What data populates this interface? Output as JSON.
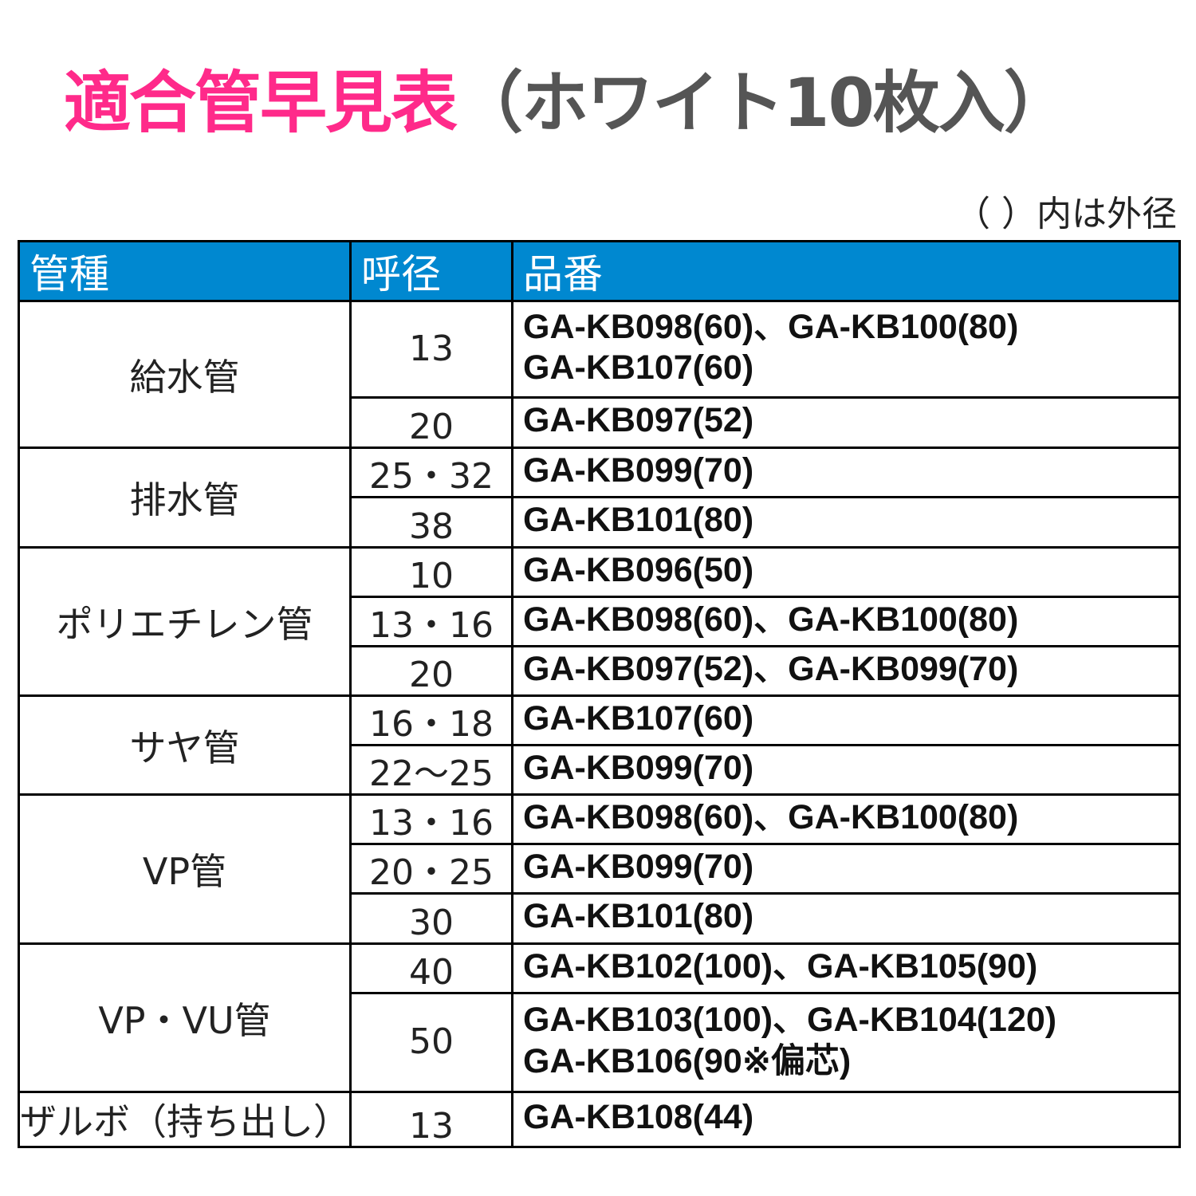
{
  "title": {
    "main": "適合管早見表",
    "sub": "（ホワイト10枚入）"
  },
  "note": "（ ）内は外径",
  "colors": {
    "title_accent": "#ff2a8a",
    "title_sub": "#555555",
    "header_bg": "#0088d0"
  },
  "table": {
    "headers": [
      "管種",
      "呼径",
      "品番"
    ],
    "groups": [
      {
        "type": "給水管",
        "rows": [
          {
            "size": "13",
            "products": [
              "GA-KB098(60)、GA-KB100(80)",
              "GA-KB107(60)"
            ]
          },
          {
            "size": "20",
            "products": [
              "GA-KB097(52)"
            ]
          }
        ]
      },
      {
        "type": "排水管",
        "rows": [
          {
            "size": "25・32",
            "products": [
              "GA-KB099(70)"
            ]
          },
          {
            "size": "38",
            "products": [
              "GA-KB101(80)"
            ]
          }
        ]
      },
      {
        "type": "ポリエチレン管",
        "rows": [
          {
            "size": "10",
            "products": [
              "GA-KB096(50)"
            ]
          },
          {
            "size": "13・16",
            "products": [
              "GA-KB098(60)、GA-KB100(80)"
            ]
          },
          {
            "size": "20",
            "products": [
              "GA-KB097(52)、GA-KB099(70)"
            ]
          }
        ]
      },
      {
        "type": "サヤ管",
        "rows": [
          {
            "size": "16・18",
            "products": [
              "GA-KB107(60)"
            ]
          },
          {
            "size": "22～25",
            "products": [
              "GA-KB099(70)"
            ]
          }
        ]
      },
      {
        "type": "VP管",
        "rows": [
          {
            "size": "13・16",
            "products": [
              "GA-KB098(60)、GA-KB100(80)"
            ]
          },
          {
            "size": "20・25",
            "products": [
              "GA-KB099(70)"
            ]
          },
          {
            "size": "30",
            "products": [
              "GA-KB101(80)"
            ]
          }
        ]
      },
      {
        "type": "VP・VU管",
        "rows": [
          {
            "size": "40",
            "products": [
              "GA-KB102(100)、GA-KB105(90)"
            ]
          },
          {
            "size": "50",
            "products": [
              "GA-KB103(100)、GA-KB104(120)",
              "GA-KB106(90※偏芯)"
            ]
          }
        ]
      },
      {
        "type": "ザルボ（持ち出し）",
        "rows": [
          {
            "size": "13",
            "products": [
              "GA-KB108(44)"
            ]
          }
        ]
      }
    ]
  }
}
